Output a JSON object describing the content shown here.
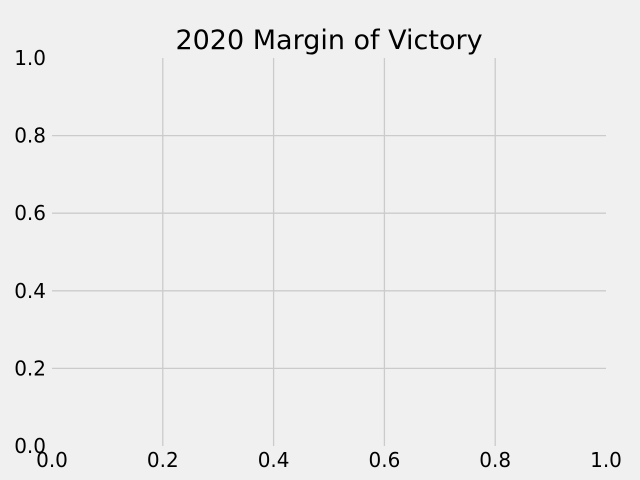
{
  "chart_data": {
    "type": "line",
    "title": "2020 Margin of Victory",
    "xlabel": "",
    "ylabel": "",
    "xlim": [
      0.0,
      1.0
    ],
    "ylim": [
      0.0,
      1.0
    ],
    "x_ticks": [
      0.0,
      0.2,
      0.4,
      0.6,
      0.8,
      1.0
    ],
    "y_ticks": [
      0.0,
      0.2,
      0.4,
      0.6,
      0.8,
      1.0
    ],
    "x_tick_labels": [
      "0.0",
      "0.2",
      "0.4",
      "0.6",
      "0.8",
      "1.0"
    ],
    "y_tick_labels": [
      "0.0",
      "0.2",
      "0.4",
      "0.6",
      "0.8",
      "1.0"
    ],
    "grid": true,
    "series": [],
    "colors": {
      "background": "#f0f0f0",
      "grid": "#cbcbcb",
      "text": "#000000"
    }
  }
}
